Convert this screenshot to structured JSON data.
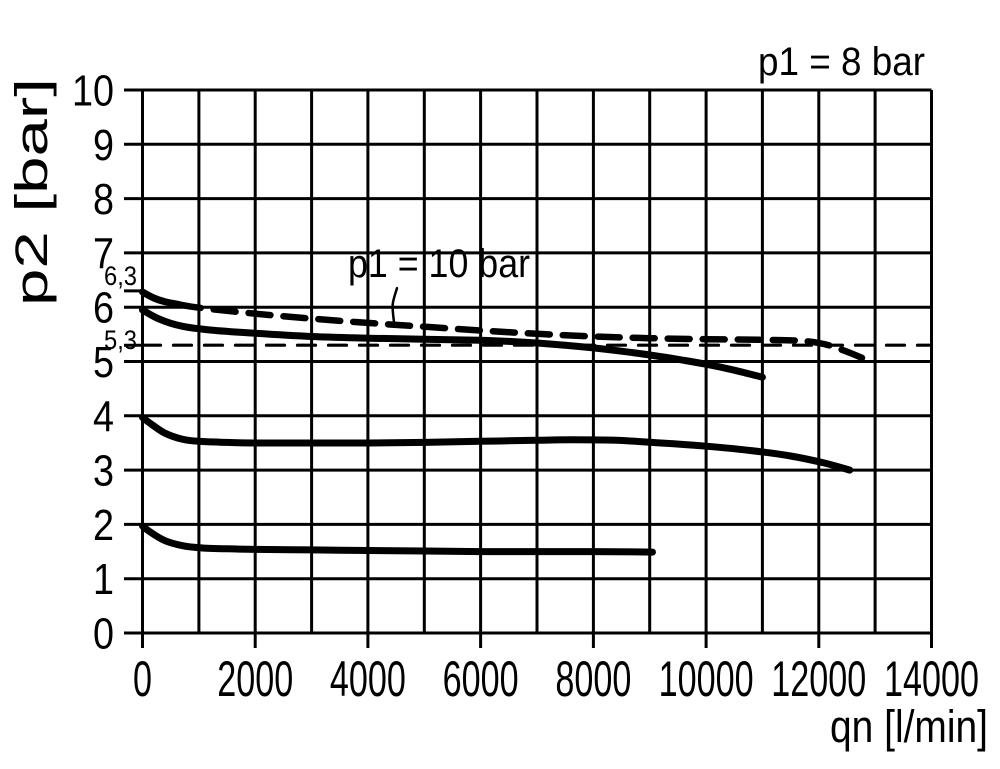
{
  "chart_data": {
    "type": "line",
    "title": "p1 = 8 bar",
    "annotation": {
      "text": "p1 = 10 bar",
      "leader_points": [
        [
          4516,
          6.35
        ],
        [
          4440,
          6.05
        ],
        [
          4463,
          5.72
        ]
      ]
    },
    "xlabel": "qn [l/min]",
    "ylabel": "p2 [bar]",
    "xlim": [
      0,
      14000
    ],
    "ylim": [
      0,
      10
    ],
    "x_grid_step": 1000,
    "y_grid_step": 1,
    "x_tick_labels": [
      0,
      2000,
      4000,
      6000,
      8000,
      10000,
      12000,
      14000
    ],
    "y_tick_labels": [
      0,
      1,
      2,
      3,
      4,
      5,
      6,
      7,
      8,
      9,
      10
    ],
    "y_extra_ticks": [
      {
        "label": "6,3",
        "value": 6.3,
        "label_dy": -6
      },
      {
        "label": "5,3",
        "value": 5.3,
        "label_dy": 4
      }
    ],
    "grid": true,
    "legend_position": "none",
    "series": [
      {
        "name": "p1-8-bar-flow-curve",
        "style": "thick-solid",
        "points": [
          [
            0,
            5.95
          ],
          [
            300,
            5.78
          ],
          [
            700,
            5.65
          ],
          [
            1200,
            5.58
          ],
          [
            2000,
            5.52
          ],
          [
            3000,
            5.46
          ],
          [
            4000,
            5.43
          ],
          [
            5000,
            5.41
          ],
          [
            6000,
            5.39
          ],
          [
            6500,
            5.37
          ],
          [
            7000,
            5.34
          ],
          [
            7500,
            5.3
          ],
          [
            8000,
            5.25
          ],
          [
            8500,
            5.19
          ],
          [
            9000,
            5.12
          ],
          [
            9500,
            5.04
          ],
          [
            10000,
            4.95
          ],
          [
            10500,
            4.84
          ],
          [
            11000,
            4.71
          ]
        ]
      },
      {
        "name": "p1-10-bar-flow-curve-solid-start",
        "style": "thick-solid",
        "points": [
          [
            0,
            6.28
          ],
          [
            200,
            6.17
          ],
          [
            400,
            6.1
          ],
          [
            650,
            6.05
          ]
        ]
      },
      {
        "name": "p1-10-bar-flow-curve",
        "style": "thick-dashed",
        "points": [
          [
            650,
            6.05
          ],
          [
            1000,
            5.99
          ],
          [
            2000,
            5.88
          ],
          [
            3000,
            5.79
          ],
          [
            4000,
            5.71
          ],
          [
            5000,
            5.64
          ],
          [
            6000,
            5.57
          ],
          [
            7000,
            5.51
          ],
          [
            8000,
            5.46
          ],
          [
            9000,
            5.43
          ],
          [
            10000,
            5.41
          ],
          [
            11000,
            5.4
          ],
          [
            11700,
            5.38
          ],
          [
            12100,
            5.32
          ],
          [
            12500,
            5.18
          ],
          [
            12850,
            5.03
          ]
        ]
      },
      {
        "name": "reference-line-5.3-bar",
        "style": "thin-dashed",
        "points": [
          [
            0,
            5.3
          ],
          [
            14000,
            5.3
          ]
        ]
      },
      {
        "name": "setpoint-3.5-bar-flow-curve",
        "style": "thick-solid",
        "points": [
          [
            0,
            3.97
          ],
          [
            150,
            3.85
          ],
          [
            400,
            3.68
          ],
          [
            700,
            3.57
          ],
          [
            1000,
            3.53
          ],
          [
            1500,
            3.51
          ],
          [
            2000,
            3.5
          ],
          [
            3000,
            3.5
          ],
          [
            4000,
            3.5
          ],
          [
            5000,
            3.51
          ],
          [
            6000,
            3.53
          ],
          [
            7000,
            3.55
          ],
          [
            7600,
            3.56
          ],
          [
            8400,
            3.55
          ],
          [
            9200,
            3.5
          ],
          [
            10000,
            3.44
          ],
          [
            10800,
            3.36
          ],
          [
            11500,
            3.26
          ],
          [
            12100,
            3.13
          ],
          [
            12550,
            3.0
          ]
        ]
      },
      {
        "name": "setpoint-1.5-bar-flow-curve",
        "style": "thick-solid",
        "points": [
          [
            0,
            1.97
          ],
          [
            150,
            1.85
          ],
          [
            400,
            1.7
          ],
          [
            700,
            1.61
          ],
          [
            1000,
            1.57
          ],
          [
            1500,
            1.55
          ],
          [
            2000,
            1.54
          ],
          [
            3000,
            1.53
          ],
          [
            4000,
            1.52
          ],
          [
            5000,
            1.51
          ],
          [
            6000,
            1.5
          ],
          [
            7000,
            1.5
          ],
          [
            8000,
            1.5
          ],
          [
            9050,
            1.49
          ]
        ]
      }
    ]
  }
}
